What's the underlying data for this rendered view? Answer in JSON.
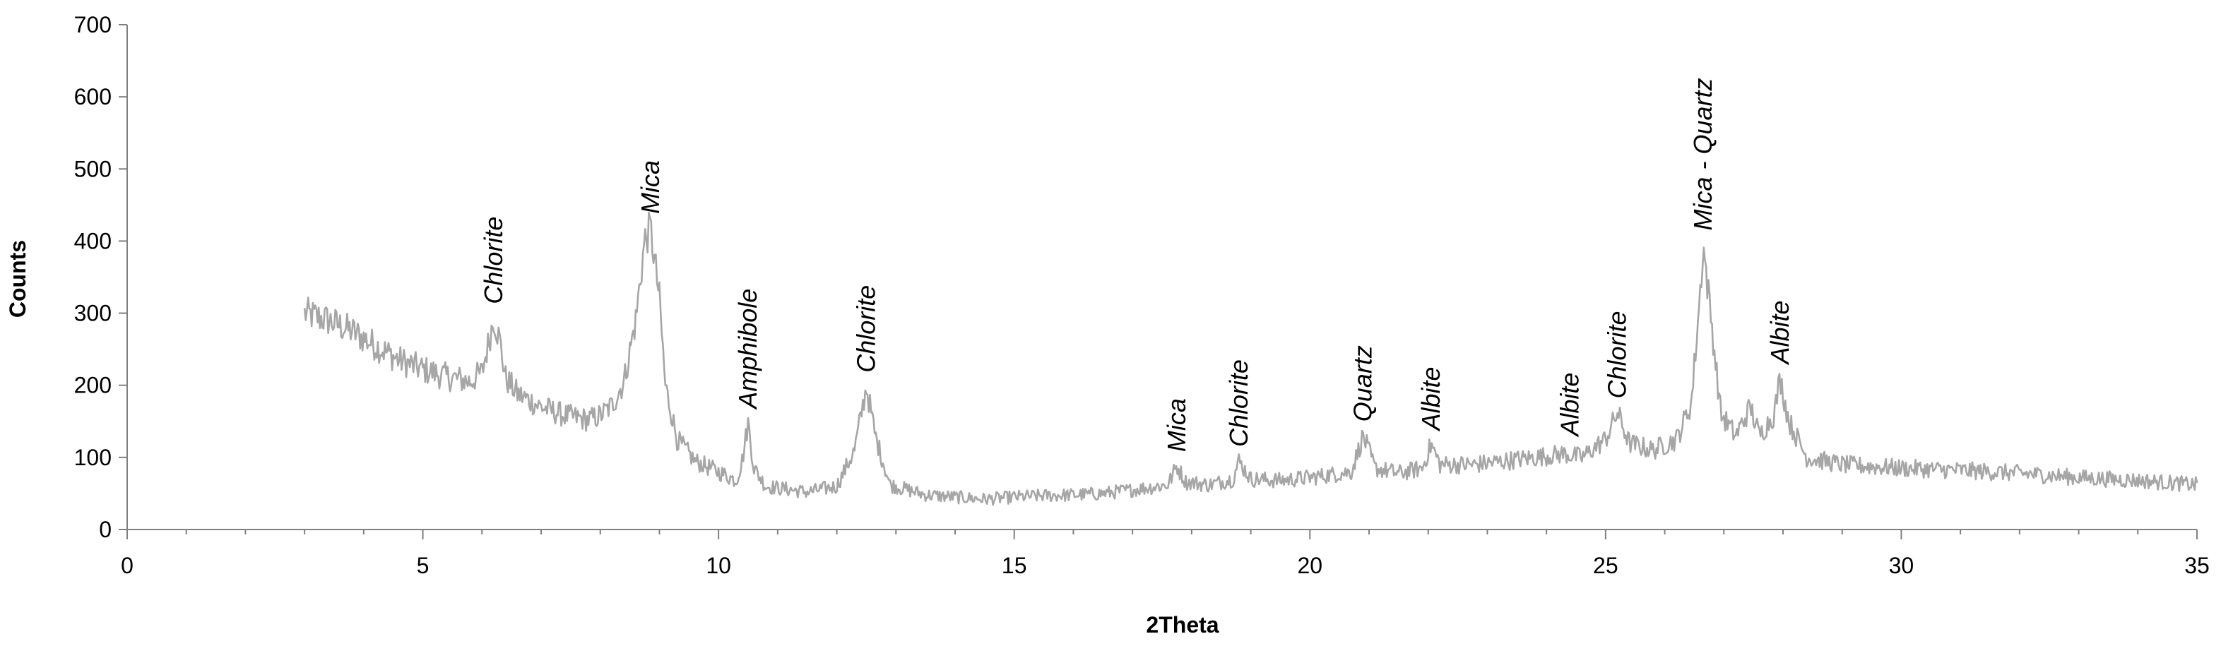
{
  "chart_data": {
    "type": "line",
    "xlabel": "2Theta",
    "ylabel": "Counts",
    "xlim": [
      0,
      35
    ],
    "ylim": [
      0,
      700
    ],
    "x_ticks": [
      "0",
      "5",
      "10",
      "15",
      "20",
      "25",
      "30",
      "35"
    ],
    "y_ticks": [
      "0",
      "100",
      "200",
      "300",
      "400",
      "500",
      "600",
      "700"
    ],
    "grid": false,
    "legend": "none",
    "series": [
      {
        "color": "#a6a6a6",
        "x_range": [
          3,
          35
        ],
        "points": [
          [
            3.0,
            300
          ],
          [
            3.4,
            290
          ],
          [
            3.8,
            275
          ],
          [
            4.2,
            255
          ],
          [
            4.6,
            235
          ],
          [
            5.0,
            222
          ],
          [
            5.4,
            212
          ],
          [
            5.8,
            205
          ],
          [
            6.0,
            218
          ],
          [
            6.1,
            255
          ],
          [
            6.2,
            293
          ],
          [
            6.3,
            262
          ],
          [
            6.4,
            210
          ],
          [
            6.6,
            188
          ],
          [
            7.0,
            170
          ],
          [
            7.4,
            158
          ],
          [
            7.8,
            152
          ],
          [
            8.0,
            158
          ],
          [
            8.2,
            172
          ],
          [
            8.4,
            205
          ],
          [
            8.6,
            290
          ],
          [
            8.75,
            400
          ],
          [
            8.85,
            418
          ],
          [
            9.0,
            320
          ],
          [
            9.1,
            200
          ],
          [
            9.3,
            125
          ],
          [
            9.6,
            95
          ],
          [
            10.0,
            80
          ],
          [
            10.3,
            68
          ],
          [
            10.4,
            95
          ],
          [
            10.5,
            148
          ],
          [
            10.6,
            85
          ],
          [
            10.8,
            60
          ],
          [
            11.5,
            52
          ],
          [
            12.0,
            60
          ],
          [
            12.3,
            110
          ],
          [
            12.5,
            198
          ],
          [
            12.65,
            130
          ],
          [
            12.9,
            62
          ],
          [
            13.5,
            48
          ],
          [
            14.0,
            45
          ],
          [
            14.5,
            42
          ],
          [
            15.0,
            45
          ],
          [
            15.5,
            47
          ],
          [
            16.0,
            48
          ],
          [
            16.5,
            50
          ],
          [
            17.0,
            55
          ],
          [
            17.6,
            62
          ],
          [
            17.75,
            88
          ],
          [
            17.9,
            66
          ],
          [
            18.3,
            62
          ],
          [
            18.7,
            70
          ],
          [
            18.8,
            95
          ],
          [
            19.0,
            70
          ],
          [
            19.5,
            68
          ],
          [
            20.0,
            72
          ],
          [
            20.7,
            80
          ],
          [
            20.9,
            130
          ],
          [
            21.1,
            85
          ],
          [
            21.5,
            78
          ],
          [
            21.9,
            85
          ],
          [
            22.05,
            118
          ],
          [
            22.2,
            90
          ],
          [
            22.8,
            90
          ],
          [
            23.3,
            95
          ],
          [
            23.8,
            100
          ],
          [
            24.3,
            105
          ],
          [
            24.6,
            100
          ],
          [
            25.0,
            125
          ],
          [
            25.2,
            162
          ],
          [
            25.4,
            120
          ],
          [
            25.8,
            110
          ],
          [
            26.2,
            125
          ],
          [
            26.45,
            175
          ],
          [
            26.6,
            330
          ],
          [
            26.65,
            395
          ],
          [
            26.8,
            280
          ],
          [
            26.95,
            160
          ],
          [
            27.2,
            130
          ],
          [
            27.45,
            170
          ],
          [
            27.6,
            130
          ],
          [
            27.85,
            160
          ],
          [
            27.95,
            210
          ],
          [
            28.1,
            150
          ],
          [
            28.4,
            100
          ],
          [
            29.0,
            90
          ],
          [
            30.0,
            85
          ],
          [
            31.0,
            82
          ],
          [
            32.0,
            78
          ],
          [
            33.0,
            72
          ],
          [
            34.0,
            68
          ],
          [
            35.0,
            62
          ]
        ]
      }
    ],
    "annotations": [
      {
        "text": "Chlorite",
        "x": 6.2,
        "y": 293
      },
      {
        "text": "Mica",
        "x": 8.85,
        "y": 418
      },
      {
        "text": "Amphibole",
        "x": 10.5,
        "y": 148
      },
      {
        "text": "Chlorite",
        "x": 12.5,
        "y": 198
      },
      {
        "text": "Mica",
        "x": 17.75,
        "y": 88
      },
      {
        "text": "Chlorite",
        "x": 18.8,
        "y": 95
      },
      {
        "text": "Quartz",
        "x": 20.9,
        "y": 130
      },
      {
        "text": "Albite",
        "x": 22.05,
        "y": 118
      },
      {
        "text": "Albite",
        "x": 24.4,
        "y": 110
      },
      {
        "text": "Chlorite",
        "x": 25.2,
        "y": 162
      },
      {
        "text": "Mica - Quartz",
        "x": 26.65,
        "y": 395
      },
      {
        "text": "Albite",
        "x": 27.95,
        "y": 210
      }
    ]
  }
}
